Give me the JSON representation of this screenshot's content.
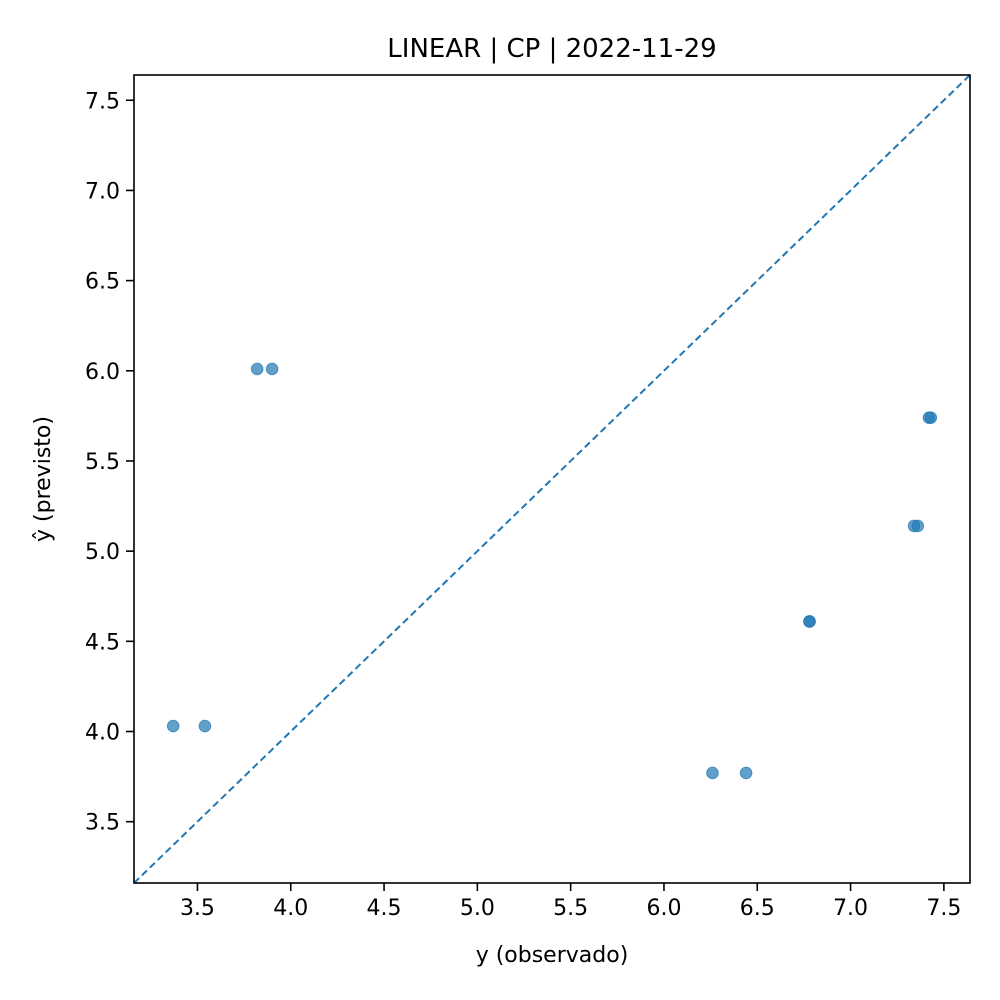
{
  "chart_data": {
    "type": "scatter",
    "title": "LINEAR | CP | 2022-11-29",
    "xlabel": "y (observado)",
    "ylabel": "ŷ (previsto)",
    "xlim": [
      3.16,
      7.64
    ],
    "ylim": [
      3.16,
      7.64
    ],
    "xticks": [
      "3.5",
      "4.0",
      "4.5",
      "5.0",
      "5.5",
      "6.0",
      "6.5",
      "7.0",
      "7.5"
    ],
    "yticks": [
      "3.5",
      "4.0",
      "4.5",
      "5.0",
      "5.5",
      "6.0",
      "6.5",
      "7.0",
      "7.5"
    ],
    "grid": false,
    "reference_line": "y = x",
    "colors": {
      "points": "#1f77b4",
      "reference_line": "#1f77b4"
    },
    "points": [
      {
        "x": 3.37,
        "y": 4.03
      },
      {
        "x": 3.54,
        "y": 4.03
      },
      {
        "x": 3.82,
        "y": 6.01
      },
      {
        "x": 3.9,
        "y": 6.01
      },
      {
        "x": 6.26,
        "y": 3.77
      },
      {
        "x": 6.44,
        "y": 3.77
      },
      {
        "x": 6.78,
        "y": 4.61
      },
      {
        "x": 6.78,
        "y": 4.61
      },
      {
        "x": 7.34,
        "y": 5.14
      },
      {
        "x": 7.36,
        "y": 5.14
      },
      {
        "x": 7.42,
        "y": 5.74
      },
      {
        "x": 7.43,
        "y": 5.74
      }
    ]
  }
}
